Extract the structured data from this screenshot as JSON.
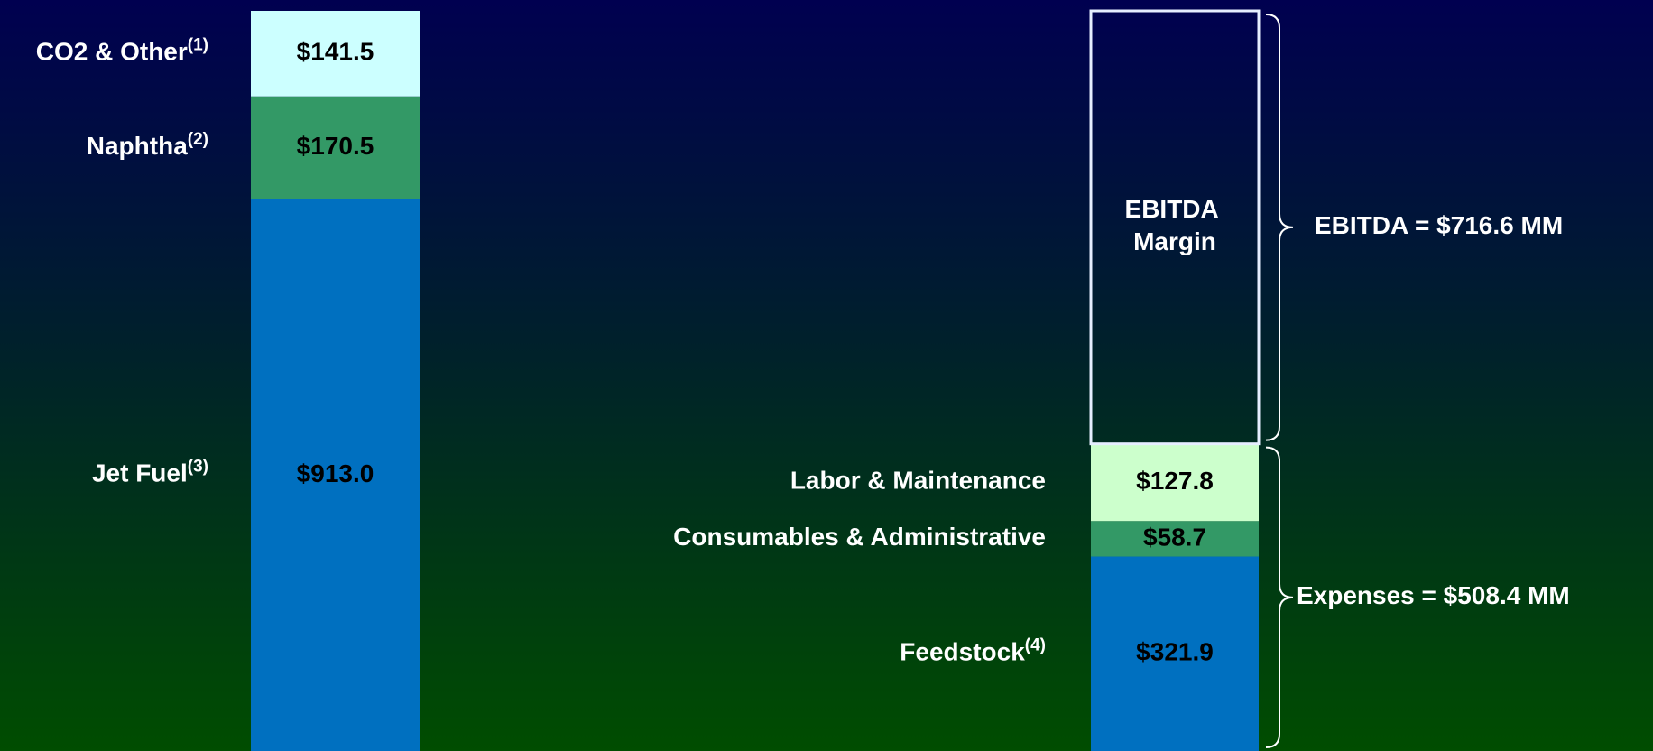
{
  "chart_data": [
    {
      "type": "stacked_bar",
      "categories": [
        "Jet Fuel",
        "Naphtha",
        "CO2 & Other"
      ],
      "notes": [
        "(3)",
        "(2)",
        "(1)"
      ],
      "values": [
        913.0,
        170.5,
        141.5
      ],
      "value_labels": [
        "$913.0",
        "$170.5",
        "$141.5"
      ],
      "colors": [
        "#0070c0",
        "#339966",
        "#ccffff"
      ],
      "ylim": [
        0,
        1225
      ]
    },
    {
      "type": "stacked_bar",
      "categories": [
        "Feedstock",
        "Consumables & Administrative",
        "Labor & Maintenance",
        "EBITDA Margin"
      ],
      "notes": [
        "(4)",
        null,
        null,
        null
      ],
      "values": [
        321.9,
        58.7,
        127.8,
        716.6
      ],
      "value_labels": [
        "$321.9",
        "$58.7",
        "$127.8",
        null
      ],
      "colors": [
        "#0070c0",
        "#339966",
        "#ccffcc",
        null
      ],
      "annotations": [
        "EBITDA = $716.6 MM",
        "Expenses = $508.4 MM"
      ],
      "ylim": [
        0,
        1225
      ]
    }
  ]
}
